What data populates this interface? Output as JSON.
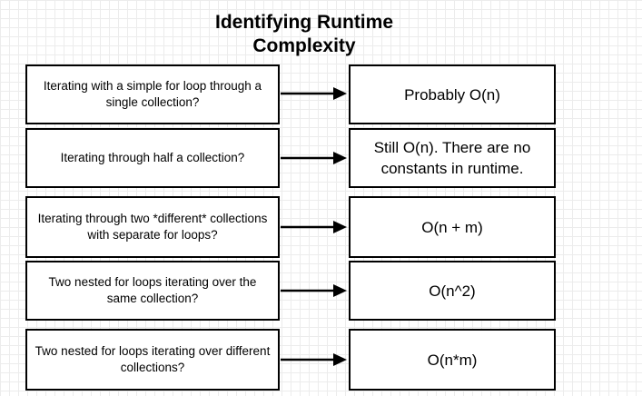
{
  "title": "Identifying Runtime Complexity",
  "colors": {
    "stroke": "#000000",
    "box_fill": "#ffffff",
    "grid": "#ececec"
  },
  "rows": [
    {
      "question": "Iterating with a simple for loop through a single collection?",
      "answer": "Probably O(n)"
    },
    {
      "question": "Iterating through half a collection?",
      "answer": "Still O(n).  There are no constants in runtime."
    },
    {
      "question": "Iterating through two *different* collections with separate for loops?",
      "answer": "O(n + m)"
    },
    {
      "question": "Two nested for loops iterating over the same collection?",
      "answer": "O(n^2)"
    },
    {
      "question": "Two nested for loops iterating over different collections?",
      "answer": "O(n*m)"
    }
  ]
}
